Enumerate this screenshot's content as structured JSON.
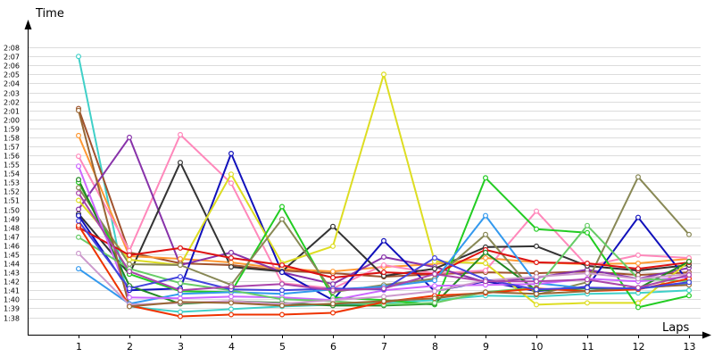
{
  "chart_data": {
    "type": "line",
    "title": "",
    "xlabel": "Laps",
    "ylabel": "Time",
    "x": [
      1,
      2,
      3,
      4,
      5,
      6,
      7,
      8,
      9,
      10,
      11,
      12,
      13
    ],
    "x_tick_labels": [
      "1",
      "2",
      "3",
      "4",
      "5",
      "6",
      "7",
      "8",
      "9",
      "10",
      "11",
      "12",
      "13"
    ],
    "y_unit": "seconds",
    "ylim": [
      97,
      129
    ],
    "y_tick_labels": [
      "1:38",
      "1:39",
      "1:40",
      "1:41",
      "1:42",
      "1:43",
      "1:44",
      "1:45",
      "1:46",
      "1:47",
      "1:48",
      "1:49",
      "1:50",
      "1:51",
      "1:52",
      "1:53",
      "1:54",
      "1:55",
      "1:56",
      "1:57",
      "1:58",
      "1:59",
      "2:00",
      "2:01",
      "2:02",
      "2:03",
      "2:04",
      "2:05",
      "2:06",
      "2:07",
      "2:08"
    ],
    "y_tick_values": [
      98,
      99,
      100,
      101,
      102,
      103,
      104,
      105,
      106,
      107,
      108,
      109,
      110,
      111,
      112,
      113,
      114,
      115,
      116,
      117,
      118,
      119,
      120,
      121,
      122,
      123,
      124,
      125,
      126,
      127,
      128
    ],
    "grid": true,
    "legend": "none",
    "series": [
      {
        "color": "#40d0c8",
        "values": [
          127.0,
          99.2,
          98.6,
          98.9,
          99.2,
          99.4,
          99.6,
          99.9,
          100.4,
          100.3,
          100.6,
          100.7,
          101.0
        ]
      },
      {
        "color": "#a0522d",
        "values": [
          121.2,
          105.2,
          104.0,
          103.8,
          103.2,
          102.9,
          102.5,
          102.8,
          103.0,
          102.9,
          103.1,
          102.7,
          103.0
        ]
      },
      {
        "color": "#ff9933",
        "values": [
          118.2,
          104.8,
          104.5,
          104.1,
          103.4,
          103.1,
          103.6,
          103.9,
          104.6,
          104.1,
          103.9,
          104.0,
          104.5
        ]
      },
      {
        "color": "#ff88bb",
        "values": [
          115.9,
          105.4,
          118.3,
          112.9,
          101.8,
          101.2,
          103.8,
          102.9,
          103.2,
          109.8,
          103.7,
          104.9,
          104.6
        ]
      },
      {
        "color": "#8833aa",
        "values": [
          110.0,
          118.0,
          103.8,
          105.2,
          103.0,
          101.7,
          104.7,
          103.6,
          101.9,
          102.4,
          103.3,
          102.3,
          103.5
        ]
      },
      {
        "color": "#333333",
        "values": [
          109.5,
          102.8,
          115.2,
          103.6,
          103.1,
          108.1,
          102.6,
          103.4,
          105.8,
          105.9,
          103.7,
          103.2,
          103.8
        ]
      },
      {
        "color": "#1111bb",
        "values": [
          109.3,
          101.0,
          101.2,
          116.2,
          103.0,
          99.9,
          106.5,
          100.9,
          102.0,
          100.9,
          101.4,
          109.1,
          101.9
        ]
      },
      {
        "color": "#dddd22",
        "values": [
          111.0,
          104.4,
          103.8,
          113.9,
          104.0,
          105.9,
          125.0,
          104.2,
          104.0,
          99.4,
          99.6,
          99.6,
          104.2
        ]
      },
      {
        "color": "#22cc22",
        "values": [
          113.0,
          102.8,
          100.9,
          100.8,
          110.3,
          100.2,
          99.9,
          99.4,
          113.5,
          107.8,
          107.4,
          99.1,
          100.4
        ]
      },
      {
        "color": "#888855",
        "values": [
          112.4,
          103.9,
          103.8,
          101.6,
          108.9,
          100.8,
          101.6,
          102.3,
          107.2,
          100.5,
          101.9,
          113.6,
          107.2
        ]
      },
      {
        "color": "#dd1111",
        "values": [
          108.0,
          104.9,
          105.7,
          104.6,
          103.8,
          102.4,
          103.0,
          102.8,
          105.5,
          104.1,
          104.0,
          103.4,
          104.1
        ]
      },
      {
        "color": "#3399ee",
        "values": [
          103.4,
          99.5,
          100.6,
          100.8,
          100.6,
          101.1,
          101.4,
          102.1,
          109.3,
          101.8,
          101.2,
          101.2,
          101.7
        ]
      },
      {
        "color": "#228822",
        "values": [
          113.3,
          101.5,
          99.5,
          99.8,
          99.6,
          99.3,
          99.3,
          99.5,
          105.2,
          101.0,
          101.2,
          101.2,
          104.2
        ]
      },
      {
        "color": "#cc66ff",
        "values": [
          114.8,
          100.2,
          100.1,
          100.3,
          100.2,
          99.9,
          101.0,
          101.5,
          101.6,
          101.7,
          102.3,
          102.0,
          102.5
        ]
      },
      {
        "color": "#66cc66",
        "values": [
          106.9,
          103.4,
          101.8,
          101.0,
          100.0,
          99.8,
          99.4,
          99.6,
          100.8,
          101.3,
          108.2,
          102.3,
          102.0
        ]
      },
      {
        "color": "#ee3300",
        "values": [
          108.2,
          99.3,
          98.1,
          98.3,
          98.3,
          98.5,
          99.7,
          100.4,
          100.7,
          101.2,
          100.9,
          101.1,
          102.3
        ]
      },
      {
        "color": "#cc99cc",
        "values": [
          105.1,
          99.4,
          99.6,
          99.8,
          99.5,
          99.9,
          100.3,
          100.9,
          102.1,
          102.5,
          102.9,
          102.3,
          102.8
        ]
      },
      {
        "color": "#996633",
        "values": [
          121.0,
          99.2,
          99.7,
          99.6,
          99.3,
          99.5,
          99.8,
          100.1,
          100.8,
          100.6,
          100.9,
          101.3,
          101.6
        ]
      },
      {
        "color": "#4444dd",
        "values": [
          108.7,
          101.2,
          102.5,
          101.1,
          101.0,
          101.2,
          101.1,
          104.6,
          102.2,
          101.1,
          101.3,
          101.2,
          101.9
        ]
      },
      {
        "color": "#aa44aa",
        "values": [
          111.8,
          103.1,
          101.0,
          101.4,
          101.7,
          101.0,
          101.2,
          102.8,
          102.0,
          102.0,
          102.2,
          101.3,
          102.7
        ]
      }
    ]
  }
}
